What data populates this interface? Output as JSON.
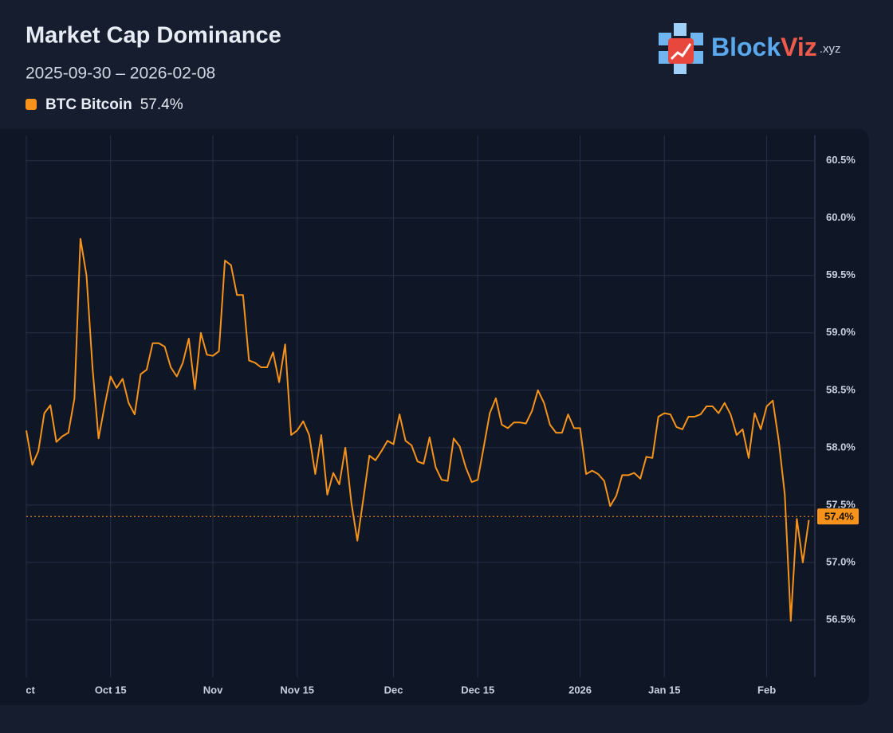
{
  "chart_data": {
    "type": "line",
    "title": "Market Cap Dominance",
    "subtitle": "2025-09-30 – 2026-02-08",
    "brand": {
      "name": "Block",
      "accent": "Viz",
      "suffix": ".xyz"
    },
    "series": [
      {
        "name": "BTC Bitcoin",
        "color": "#f7931a",
        "last": {
          "value": 57.4,
          "label": "57.4%"
        },
        "values": [
          58.15,
          57.85,
          57.97,
          58.3,
          58.37,
          58.05,
          58.1,
          58.13,
          58.43,
          59.82,
          59.5,
          58.7,
          58.08,
          58.36,
          58.62,
          58.52,
          58.6,
          58.39,
          58.29,
          58.64,
          58.68,
          58.91,
          58.91,
          58.88,
          58.7,
          58.62,
          58.74,
          58.95,
          58.51,
          59.0,
          58.81,
          58.8,
          58.84,
          59.63,
          59.59,
          59.33,
          59.33,
          58.76,
          58.74,
          58.7,
          58.7,
          58.83,
          58.57,
          58.9,
          58.11,
          58.15,
          58.23,
          58.11,
          57.77,
          58.11,
          57.59,
          57.78,
          57.68,
          58.0,
          57.52,
          57.19,
          57.56,
          57.93,
          57.89,
          57.97,
          58.06,
          58.03,
          58.29,
          58.06,
          58.02,
          57.88,
          57.86,
          58.09,
          57.83,
          57.72,
          57.71,
          58.08,
          58.01,
          57.83,
          57.7,
          57.72,
          58.01,
          58.3,
          58.43,
          58.2,
          58.17,
          58.22,
          58.22,
          58.21,
          58.32,
          58.5,
          58.39,
          58.2,
          58.13,
          58.13,
          58.29,
          58.17,
          58.17,
          57.77,
          57.8,
          57.77,
          57.71,
          57.49,
          57.58,
          57.76,
          57.76,
          57.78,
          57.73,
          57.92,
          57.91,
          58.27,
          58.3,
          58.29,
          58.18,
          58.16,
          58.27,
          58.27,
          58.29,
          58.36,
          58.36,
          58.3,
          58.39,
          58.29,
          58.11,
          58.16,
          57.91,
          58.3,
          58.16,
          58.36,
          58.41,
          58.06,
          57.59,
          56.49,
          57.38,
          57.0,
          57.37
        ]
      }
    ],
    "x": [
      "2025-10-01",
      "2025-10-02",
      "2025-10-03",
      "2025-10-04",
      "2025-10-05",
      "2025-10-06",
      "2025-10-07",
      "2025-10-08",
      "2025-10-09",
      "2025-10-10",
      "2025-10-11",
      "2025-10-12",
      "2025-10-13",
      "2025-10-14",
      "2025-10-15",
      "2025-10-16",
      "2025-10-17",
      "2025-10-18",
      "2025-10-19",
      "2025-10-20",
      "2025-10-21",
      "2025-10-22",
      "2025-10-23",
      "2025-10-24",
      "2025-10-25",
      "2025-10-26",
      "2025-10-27",
      "2025-10-28",
      "2025-10-29",
      "2025-10-30",
      "2025-10-31",
      "2025-11-01",
      "2025-11-02",
      "2025-11-03",
      "2025-11-04",
      "2025-11-05",
      "2025-11-06",
      "2025-11-07",
      "2025-11-08",
      "2025-11-09",
      "2025-11-10",
      "2025-11-11",
      "2025-11-12",
      "2025-11-13",
      "2025-11-14",
      "2025-11-15",
      "2025-11-16",
      "2025-11-17",
      "2025-11-18",
      "2025-11-19",
      "2025-11-20",
      "2025-11-21",
      "2025-11-22",
      "2025-11-23",
      "2025-11-24",
      "2025-11-25",
      "2025-11-26",
      "2025-11-27",
      "2025-11-28",
      "2025-11-29",
      "2025-11-30",
      "2025-12-01",
      "2025-12-02",
      "2025-12-03",
      "2025-12-04",
      "2025-12-05",
      "2025-12-06",
      "2025-12-07",
      "2025-12-08",
      "2025-12-09",
      "2025-12-10",
      "2025-12-11",
      "2025-12-12",
      "2025-12-13",
      "2025-12-14",
      "2025-12-15",
      "2025-12-16",
      "2025-12-17",
      "2025-12-18",
      "2025-12-19",
      "2025-12-20",
      "2025-12-21",
      "2025-12-22",
      "2025-12-23",
      "2025-12-24",
      "2025-12-25",
      "2025-12-26",
      "2025-12-27",
      "2025-12-28",
      "2025-12-29",
      "2025-12-30",
      "2025-12-31",
      "2026-01-01",
      "2026-01-02",
      "2026-01-03",
      "2026-01-04",
      "2026-01-05",
      "2026-01-06",
      "2026-01-07",
      "2026-01-08",
      "2026-01-09",
      "2026-01-10",
      "2026-01-11",
      "2026-01-12",
      "2026-01-13",
      "2026-01-14",
      "2026-01-15",
      "2026-01-16",
      "2026-01-17",
      "2026-01-18",
      "2026-01-19",
      "2026-01-20",
      "2026-01-21",
      "2026-01-22",
      "2026-01-23",
      "2026-01-24",
      "2026-01-25",
      "2026-01-26",
      "2026-01-27",
      "2026-01-28",
      "2026-01-29",
      "2026-01-30",
      "2026-01-31",
      "2026-02-01",
      "2026-02-02",
      "2026-02-03",
      "2026-02-04",
      "2026-02-05",
      "2026-02-06",
      "2026-02-07",
      "2026-02-08"
    ],
    "xlim": [
      "2025-10-01",
      "2026-02-09"
    ],
    "xticks": [
      {
        "value": "2025-10-01",
        "label": "Oct"
      },
      {
        "value": "2025-10-15",
        "label": "Oct 15"
      },
      {
        "value": "2025-11-01",
        "label": "Nov"
      },
      {
        "value": "2025-11-15",
        "label": "Nov 15"
      },
      {
        "value": "2025-12-01",
        "label": "Dec"
      },
      {
        "value": "2025-12-15",
        "label": "Dec 15"
      },
      {
        "value": "2026-01-01",
        "label": "2026"
      },
      {
        "value": "2026-01-15",
        "label": "Jan 15"
      },
      {
        "value": "2026-02-01",
        "label": "Feb"
      }
    ],
    "ylim": [
      56.0,
      60.72
    ],
    "yticks": [
      {
        "value": 56.5,
        "label": "56.5%"
      },
      {
        "value": 57.0,
        "label": "57.0%"
      },
      {
        "value": 57.5,
        "label": "57.5%"
      },
      {
        "value": 58.0,
        "label": "58.0%"
      },
      {
        "value": 58.5,
        "label": "58.5%"
      },
      {
        "value": 59.0,
        "label": "59.0%"
      },
      {
        "value": 59.5,
        "label": "59.5%"
      },
      {
        "value": 60.0,
        "label": "60.0%"
      },
      {
        "value": 60.5,
        "label": "60.5%"
      }
    ],
    "grid": true
  }
}
